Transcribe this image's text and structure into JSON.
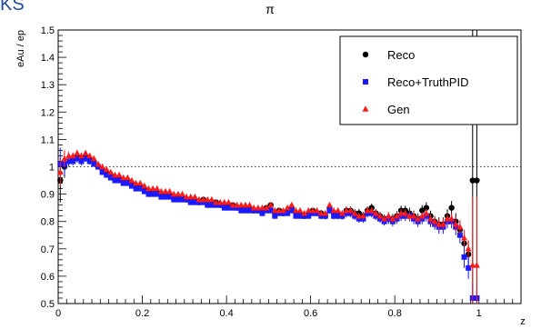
{
  "corner_text": "KS",
  "chart_data": {
    "type": "scatter",
    "title": "π",
    "xlabel": "z",
    "ylabel": "eAu / ep",
    "xlim": [
      0,
      1.1
    ],
    "ylim": [
      0.5,
      1.5
    ],
    "x_ticks": [
      0,
      0.2,
      0.4,
      0.6,
      0.8,
      1
    ],
    "x_tick_labels": [
      "0",
      "0.2",
      "0.4",
      "0.6",
      "0.8",
      "1"
    ],
    "y_ticks": [
      0.5,
      0.6,
      0.7,
      0.8,
      0.9,
      1,
      1.1,
      1.2,
      1.3,
      1.4,
      1.5
    ],
    "y_tick_labels": [
      "0.5",
      "0.6",
      "0.7",
      "0.8",
      "0.9",
      "1",
      "1.1",
      "1.2",
      "1.3",
      "1.4",
      "1.5"
    ],
    "reference_line": {
      "y": 1,
      "style": "dotted"
    },
    "legend": {
      "placement": "top-right"
    },
    "series": [
      {
        "name": "Reco",
        "marker": "circle",
        "color": "#000000",
        "x": [
          0.005,
          0.015,
          0.025,
          0.035,
          0.045,
          0.055,
          0.065,
          0.075,
          0.085,
          0.095,
          0.105,
          0.115,
          0.125,
          0.135,
          0.145,
          0.155,
          0.165,
          0.175,
          0.185,
          0.195,
          0.205,
          0.215,
          0.225,
          0.235,
          0.245,
          0.255,
          0.265,
          0.275,
          0.285,
          0.295,
          0.305,
          0.315,
          0.325,
          0.335,
          0.345,
          0.355,
          0.365,
          0.375,
          0.385,
          0.395,
          0.405,
          0.415,
          0.425,
          0.435,
          0.445,
          0.455,
          0.465,
          0.475,
          0.485,
          0.495,
          0.505,
          0.515,
          0.525,
          0.535,
          0.545,
          0.555,
          0.565,
          0.575,
          0.585,
          0.595,
          0.605,
          0.615,
          0.625,
          0.635,
          0.645,
          0.655,
          0.665,
          0.675,
          0.685,
          0.695,
          0.705,
          0.715,
          0.725,
          0.735,
          0.745,
          0.755,
          0.765,
          0.775,
          0.785,
          0.795,
          0.805,
          0.815,
          0.825,
          0.835,
          0.845,
          0.855,
          0.865,
          0.875,
          0.885,
          0.895,
          0.905,
          0.915,
          0.925,
          0.935,
          0.945,
          0.955,
          0.965,
          0.975,
          0.985,
          0.995
        ],
        "y": [
          0.95,
          1.0,
          1.02,
          1.03,
          1.04,
          1.03,
          1.04,
          1.03,
          1.02,
          1.0,
          0.99,
          0.98,
          0.97,
          0.96,
          0.96,
          0.95,
          0.95,
          0.94,
          0.93,
          0.93,
          0.92,
          0.91,
          0.91,
          0.91,
          0.9,
          0.9,
          0.9,
          0.89,
          0.89,
          0.89,
          0.88,
          0.88,
          0.88,
          0.87,
          0.88,
          0.87,
          0.87,
          0.87,
          0.86,
          0.86,
          0.86,
          0.86,
          0.85,
          0.85,
          0.85,
          0.85,
          0.84,
          0.84,
          0.84,
          0.85,
          0.86,
          0.83,
          0.84,
          0.83,
          0.84,
          0.85,
          0.83,
          0.83,
          0.82,
          0.83,
          0.84,
          0.83,
          0.83,
          0.82,
          0.85,
          0.83,
          0.83,
          0.82,
          0.84,
          0.84,
          0.83,
          0.83,
          0.82,
          0.84,
          0.85,
          0.83,
          0.82,
          0.81,
          0.81,
          0.81,
          0.82,
          0.84,
          0.84,
          0.83,
          0.82,
          0.81,
          0.84,
          0.85,
          0.82,
          0.8,
          0.79,
          0.79,
          0.82,
          0.85,
          0.8,
          0.77,
          0.72,
          0.68,
          0.95,
          0.95
        ],
        "err": [
          0.08,
          0.04,
          0.02,
          0.015,
          0.015,
          0.015,
          0.012,
          0.012,
          0.01,
          0.01,
          0.01,
          0.01,
          0.01,
          0.01,
          0.01,
          0.01,
          0.01,
          0.01,
          0.01,
          0.01,
          0.01,
          0.01,
          0.01,
          0.01,
          0.01,
          0.01,
          0.01,
          0.01,
          0.01,
          0.01,
          0.01,
          0.01,
          0.01,
          0.01,
          0.01,
          0.01,
          0.01,
          0.01,
          0.01,
          0.01,
          0.01,
          0.01,
          0.01,
          0.01,
          0.01,
          0.01,
          0.01,
          0.01,
          0.01,
          0.01,
          0.01,
          0.01,
          0.01,
          0.01,
          0.01,
          0.01,
          0.01,
          0.01,
          0.01,
          0.01,
          0.01,
          0.01,
          0.012,
          0.012,
          0.012,
          0.012,
          0.012,
          0.012,
          0.015,
          0.015,
          0.015,
          0.015,
          0.015,
          0.015,
          0.015,
          0.015,
          0.015,
          0.015,
          0.018,
          0.018,
          0.018,
          0.018,
          0.018,
          0.02,
          0.02,
          0.02,
          0.02,
          0.02,
          0.02,
          0.02,
          0.025,
          0.025,
          0.025,
          0.025,
          0.03,
          0.03,
          0.04,
          0.05,
          0.6,
          0.6
        ]
      },
      {
        "name": "Reco+TruthPID",
        "marker": "square",
        "color": "#1a1aff",
        "x": [
          0.005,
          0.015,
          0.025,
          0.035,
          0.045,
          0.055,
          0.065,
          0.075,
          0.085,
          0.095,
          0.105,
          0.115,
          0.125,
          0.135,
          0.145,
          0.155,
          0.165,
          0.175,
          0.185,
          0.195,
          0.205,
          0.215,
          0.225,
          0.235,
          0.245,
          0.255,
          0.265,
          0.275,
          0.285,
          0.295,
          0.305,
          0.315,
          0.325,
          0.335,
          0.345,
          0.355,
          0.365,
          0.375,
          0.385,
          0.395,
          0.405,
          0.415,
          0.425,
          0.435,
          0.445,
          0.455,
          0.465,
          0.475,
          0.485,
          0.495,
          0.505,
          0.515,
          0.525,
          0.535,
          0.545,
          0.555,
          0.565,
          0.575,
          0.585,
          0.595,
          0.605,
          0.615,
          0.625,
          0.635,
          0.645,
          0.655,
          0.665,
          0.675,
          0.685,
          0.695,
          0.705,
          0.715,
          0.725,
          0.735,
          0.745,
          0.755,
          0.765,
          0.775,
          0.785,
          0.795,
          0.805,
          0.815,
          0.825,
          0.835,
          0.845,
          0.855,
          0.865,
          0.875,
          0.885,
          0.895,
          0.905,
          0.915,
          0.925,
          0.935,
          0.945,
          0.955,
          0.965,
          0.975,
          0.985,
          0.995
        ],
        "y": [
          1.01,
          1.01,
          1.02,
          1.02,
          1.03,
          1.02,
          1.03,
          1.02,
          1.01,
          1.0,
          0.98,
          0.97,
          0.96,
          0.95,
          0.95,
          0.94,
          0.94,
          0.93,
          0.92,
          0.92,
          0.91,
          0.9,
          0.9,
          0.9,
          0.89,
          0.89,
          0.89,
          0.88,
          0.88,
          0.88,
          0.88,
          0.87,
          0.87,
          0.87,
          0.87,
          0.86,
          0.86,
          0.86,
          0.86,
          0.85,
          0.85,
          0.85,
          0.85,
          0.84,
          0.84,
          0.84,
          0.84,
          0.84,
          0.83,
          0.84,
          0.84,
          0.82,
          0.83,
          0.83,
          0.83,
          0.84,
          0.82,
          0.82,
          0.82,
          0.82,
          0.83,
          0.83,
          0.82,
          0.82,
          0.84,
          0.82,
          0.82,
          0.82,
          0.83,
          0.83,
          0.82,
          0.81,
          0.81,
          0.83,
          0.83,
          0.82,
          0.81,
          0.8,
          0.81,
          0.8,
          0.81,
          0.82,
          0.82,
          0.82,
          0.81,
          0.8,
          0.81,
          0.82,
          0.8,
          0.79,
          0.78,
          0.78,
          0.8,
          0.8,
          0.78,
          0.75,
          0.67,
          0.63,
          0.52,
          0.52
        ],
        "err": [
          0.06,
          0.04,
          0.02,
          0.015,
          0.015,
          0.015,
          0.012,
          0.012,
          0.01,
          0.01,
          0.01,
          0.01,
          0.01,
          0.01,
          0.01,
          0.01,
          0.01,
          0.01,
          0.01,
          0.01,
          0.01,
          0.01,
          0.01,
          0.01,
          0.01,
          0.01,
          0.01,
          0.01,
          0.01,
          0.01,
          0.01,
          0.01,
          0.01,
          0.01,
          0.01,
          0.01,
          0.01,
          0.01,
          0.01,
          0.01,
          0.01,
          0.01,
          0.01,
          0.01,
          0.01,
          0.01,
          0.01,
          0.01,
          0.01,
          0.01,
          0.01,
          0.01,
          0.01,
          0.01,
          0.01,
          0.01,
          0.01,
          0.01,
          0.01,
          0.01,
          0.01,
          0.01,
          0.012,
          0.012,
          0.012,
          0.012,
          0.012,
          0.012,
          0.015,
          0.015,
          0.015,
          0.015,
          0.015,
          0.015,
          0.015,
          0.015,
          0.015,
          0.015,
          0.018,
          0.018,
          0.018,
          0.018,
          0.018,
          0.02,
          0.02,
          0.02,
          0.02,
          0.02,
          0.02,
          0.02,
          0.025,
          0.025,
          0.025,
          0.025,
          0.03,
          0.03,
          0.04,
          0.04,
          0.05,
          0.05
        ]
      },
      {
        "name": "Gen",
        "marker": "triangle",
        "color": "#ff1a1a",
        "x": [
          0.005,
          0.015,
          0.025,
          0.035,
          0.045,
          0.055,
          0.065,
          0.075,
          0.085,
          0.095,
          0.105,
          0.115,
          0.125,
          0.135,
          0.145,
          0.155,
          0.165,
          0.175,
          0.185,
          0.195,
          0.205,
          0.215,
          0.225,
          0.235,
          0.245,
          0.255,
          0.265,
          0.275,
          0.285,
          0.295,
          0.305,
          0.315,
          0.325,
          0.335,
          0.345,
          0.355,
          0.365,
          0.375,
          0.385,
          0.395,
          0.405,
          0.415,
          0.425,
          0.435,
          0.445,
          0.455,
          0.465,
          0.475,
          0.485,
          0.495,
          0.505,
          0.515,
          0.525,
          0.535,
          0.545,
          0.555,
          0.565,
          0.575,
          0.585,
          0.595,
          0.605,
          0.615,
          0.625,
          0.635,
          0.645,
          0.655,
          0.665,
          0.675,
          0.685,
          0.695,
          0.705,
          0.715,
          0.725,
          0.735,
          0.745,
          0.755,
          0.765,
          0.775,
          0.785,
          0.795,
          0.805,
          0.815,
          0.825,
          0.835,
          0.845,
          0.855,
          0.865,
          0.875,
          0.885,
          0.895,
          0.905,
          0.915,
          0.925,
          0.935,
          0.945,
          0.955,
          0.965,
          0.975,
          0.985,
          0.995
        ],
        "y": [
          0.98,
          1.03,
          1.04,
          1.04,
          1.05,
          1.04,
          1.05,
          1.04,
          1.03,
          1.01,
          1.0,
          0.99,
          0.98,
          0.97,
          0.97,
          0.96,
          0.96,
          0.95,
          0.94,
          0.94,
          0.93,
          0.92,
          0.92,
          0.92,
          0.91,
          0.91,
          0.91,
          0.9,
          0.9,
          0.9,
          0.89,
          0.89,
          0.89,
          0.88,
          0.88,
          0.88,
          0.88,
          0.87,
          0.87,
          0.87,
          0.87,
          0.86,
          0.86,
          0.86,
          0.86,
          0.86,
          0.85,
          0.85,
          0.85,
          0.85,
          0.86,
          0.84,
          0.84,
          0.84,
          0.85,
          0.86,
          0.84,
          0.84,
          0.83,
          0.84,
          0.84,
          0.84,
          0.83,
          0.83,
          0.86,
          0.84,
          0.84,
          0.83,
          0.84,
          0.84,
          0.83,
          0.82,
          0.82,
          0.84,
          0.84,
          0.83,
          0.82,
          0.81,
          0.82,
          0.81,
          0.82,
          0.83,
          0.83,
          0.82,
          0.82,
          0.81,
          0.82,
          0.83,
          0.81,
          0.8,
          0.79,
          0.79,
          0.81,
          0.81,
          0.79,
          0.78,
          0.74,
          0.7,
          0.64,
          0.64
        ],
        "err": [
          0.05,
          0.03,
          0.015,
          0.012,
          0.012,
          0.012,
          0.01,
          0.01,
          0.01,
          0.01,
          0.01,
          0.01,
          0.01,
          0.01,
          0.01,
          0.01,
          0.01,
          0.01,
          0.01,
          0.01,
          0.01,
          0.01,
          0.01,
          0.01,
          0.01,
          0.01,
          0.01,
          0.01,
          0.01,
          0.01,
          0.01,
          0.01,
          0.01,
          0.01,
          0.01,
          0.01,
          0.01,
          0.01,
          0.01,
          0.01,
          0.01,
          0.01,
          0.01,
          0.01,
          0.01,
          0.01,
          0.01,
          0.01,
          0.01,
          0.01,
          0.01,
          0.01,
          0.01,
          0.01,
          0.01,
          0.01,
          0.01,
          0.01,
          0.01,
          0.01,
          0.01,
          0.01,
          0.01,
          0.01,
          0.01,
          0.01,
          0.01,
          0.01,
          0.012,
          0.012,
          0.012,
          0.012,
          0.012,
          0.012,
          0.012,
          0.012,
          0.012,
          0.012,
          0.015,
          0.015,
          0.015,
          0.015,
          0.015,
          0.015,
          0.015,
          0.015,
          0.015,
          0.015,
          0.018,
          0.018,
          0.02,
          0.02,
          0.02,
          0.02,
          0.025,
          0.025,
          0.03,
          0.03,
          0.25,
          0.25
        ]
      }
    ]
  }
}
